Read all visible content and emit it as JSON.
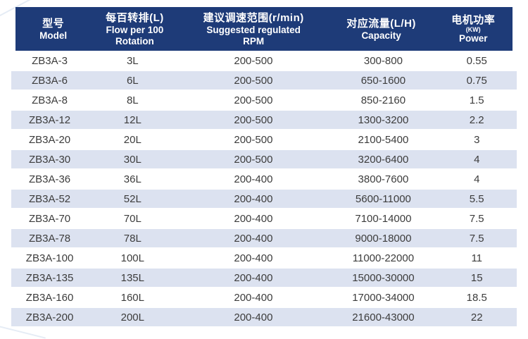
{
  "page": {
    "background": "#ffffff",
    "accent_navy": "#1e3b78",
    "stripe_color": "#dce2f0",
    "row_text_color": "#3c3c3c",
    "header_text_color": "#ffffff"
  },
  "table": {
    "columns": [
      {
        "id": "model",
        "zh": "型号",
        "en": "Model"
      },
      {
        "id": "flow",
        "zh": "每百转排(L)",
        "en": "Flow per 100",
        "en2": "Rotation"
      },
      {
        "id": "rpm",
        "zh": "建议调速范围(r/min)",
        "en": "Suggested regulated",
        "en2": "RPM"
      },
      {
        "id": "capacity",
        "zh": "对应流量(L/H)",
        "en": "Capacity"
      },
      {
        "id": "power",
        "zh": "电机功率",
        "sub": "(KW)",
        "en": "Power"
      }
    ],
    "rows": [
      [
        "ZB3A-3",
        "3L",
        "200-500",
        "300-800",
        "0.55"
      ],
      [
        "ZB3A-6",
        "6L",
        "200-500",
        "650-1600",
        "0.75"
      ],
      [
        "ZB3A-8",
        "8L",
        "200-500",
        "850-2160",
        "1.5"
      ],
      [
        "ZB3A-12",
        "12L",
        "200-500",
        "1300-3200",
        "2.2"
      ],
      [
        "ZB3A-20",
        "20L",
        "200-500",
        "2100-5400",
        "3"
      ],
      [
        "ZB3A-30",
        "30L",
        "200-500",
        "3200-6400",
        "4"
      ],
      [
        "ZB3A-36",
        "36L",
        "200-400",
        "3800-7600",
        "4"
      ],
      [
        "ZB3A-52",
        "52L",
        "200-400",
        "5600-11000",
        "5.5"
      ],
      [
        "ZB3A-70",
        "70L",
        "200-400",
        "7100-14000",
        "7.5"
      ],
      [
        "ZB3A-78",
        "78L",
        "200-400",
        "9000-18000",
        "7.5"
      ],
      [
        "ZB3A-100",
        "100L",
        "200-400",
        "11000-22000",
        "11"
      ],
      [
        "ZB3A-135",
        "135L",
        "200-400",
        "15000-30000",
        "15"
      ],
      [
        "ZB3A-160",
        "160L",
        "200-400",
        "17000-34000",
        "18.5"
      ],
      [
        "ZB3A-200",
        "200L",
        "200-400",
        "21600-43000",
        "22"
      ]
    ]
  }
}
